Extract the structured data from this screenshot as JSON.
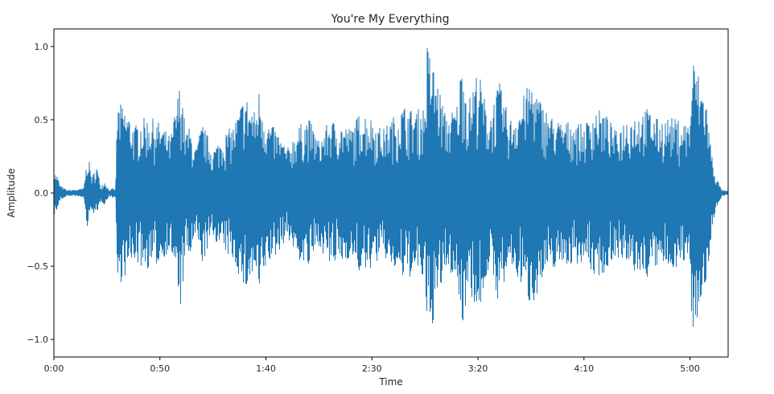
{
  "chart_data": {
    "type": "line",
    "title": "You're My Everything",
    "xlabel": "Time",
    "ylabel": "Amplitude",
    "xlim": [
      0,
      318
    ],
    "ylim": [
      -1.12,
      1.12
    ],
    "x_ticks": [
      {
        "value": 0,
        "label": "0:00"
      },
      {
        "value": 50,
        "label": "0:50"
      },
      {
        "value": 100,
        "label": "1:40"
      },
      {
        "value": 150,
        "label": "2:30"
      },
      {
        "value": 200,
        "label": "3:20"
      },
      {
        "value": 250,
        "label": "4:10"
      },
      {
        "value": 300,
        "label": "5:00"
      }
    ],
    "y_ticks": [
      {
        "value": 1.0,
        "label": "1.0"
      },
      {
        "value": 0.5,
        "label": "0.5"
      },
      {
        "value": 0.0,
        "label": "0.0"
      },
      {
        "value": -0.5,
        "label": "−0.5"
      },
      {
        "value": -1.0,
        "label": "−1.0"
      }
    ],
    "grid": false,
    "series": [
      {
        "color": "#1f77b4",
        "envelope_time_s": [
          0,
          1.5,
          3,
          6,
          10,
          14,
          16,
          18,
          20,
          22,
          24,
          26,
          28,
          29,
          30,
          32,
          35,
          38,
          40,
          45,
          50,
          55,
          60,
          62,
          64,
          67,
          70,
          75,
          80,
          85,
          90,
          95,
          97,
          100,
          105,
          110,
          115,
          120,
          125,
          130,
          135,
          140,
          145,
          150,
          155,
          160,
          165,
          170,
          175,
          176,
          180,
          185,
          190,
          193,
          195,
          200,
          205,
          210,
          215,
          220,
          225,
          230,
          235,
          240,
          245,
          250,
          255,
          260,
          265,
          270,
          275,
          280,
          285,
          290,
          295,
          300,
          301,
          303,
          305,
          307,
          308,
          310,
          312,
          315,
          318
        ],
        "envelope_upper": [
          0.15,
          0.12,
          0.05,
          0.02,
          0.02,
          0.03,
          0.27,
          0.1,
          0.2,
          0.05,
          0.08,
          0.02,
          0.03,
          0.02,
          0.62,
          0.6,
          0.55,
          0.45,
          0.5,
          0.52,
          0.48,
          0.38,
          0.8,
          0.42,
          0.45,
          0.3,
          0.48,
          0.3,
          0.4,
          0.47,
          0.68,
          0.55,
          0.73,
          0.5,
          0.43,
          0.3,
          0.45,
          0.52,
          0.36,
          0.5,
          0.48,
          0.44,
          0.57,
          0.51,
          0.43,
          0.52,
          0.6,
          0.56,
          0.6,
          1.02,
          0.82,
          0.52,
          0.6,
          0.98,
          0.6,
          0.86,
          0.52,
          0.76,
          0.5,
          0.62,
          0.78,
          0.62,
          0.52,
          0.48,
          0.5,
          0.46,
          0.58,
          0.55,
          0.42,
          0.52,
          0.55,
          0.58,
          0.5,
          0.52,
          0.5,
          0.48,
          0.92,
          0.88,
          0.75,
          0.7,
          0.6,
          0.3,
          0.12,
          0.02,
          0.01
        ],
        "envelope_lower": [
          -0.15,
          -0.12,
          -0.05,
          -0.02,
          -0.02,
          -0.03,
          -0.27,
          -0.1,
          -0.2,
          -0.05,
          -0.08,
          -0.02,
          -0.03,
          -0.02,
          -0.65,
          -0.6,
          -0.55,
          -0.45,
          -0.5,
          -0.52,
          -0.48,
          -0.38,
          -0.8,
          -0.42,
          -0.45,
          -0.3,
          -0.48,
          -0.3,
          -0.4,
          -0.47,
          -0.68,
          -0.55,
          -0.73,
          -0.5,
          -0.43,
          -0.3,
          -0.45,
          -0.52,
          -0.36,
          -0.5,
          -0.48,
          -0.44,
          -0.57,
          -0.51,
          -0.43,
          -0.52,
          -0.6,
          -0.56,
          -0.6,
          -1.04,
          -0.82,
          -0.52,
          -0.6,
          -0.98,
          -0.6,
          -0.86,
          -0.52,
          -0.76,
          -0.5,
          -0.62,
          -0.78,
          -0.62,
          -0.52,
          -0.48,
          -0.5,
          -0.46,
          -0.58,
          -0.55,
          -0.42,
          -0.52,
          -0.55,
          -0.58,
          -0.5,
          -0.52,
          -0.5,
          -0.48,
          -0.94,
          -0.88,
          -0.75,
          -0.7,
          -0.6,
          -0.3,
          -0.12,
          -0.02,
          -0.01
        ]
      }
    ]
  }
}
